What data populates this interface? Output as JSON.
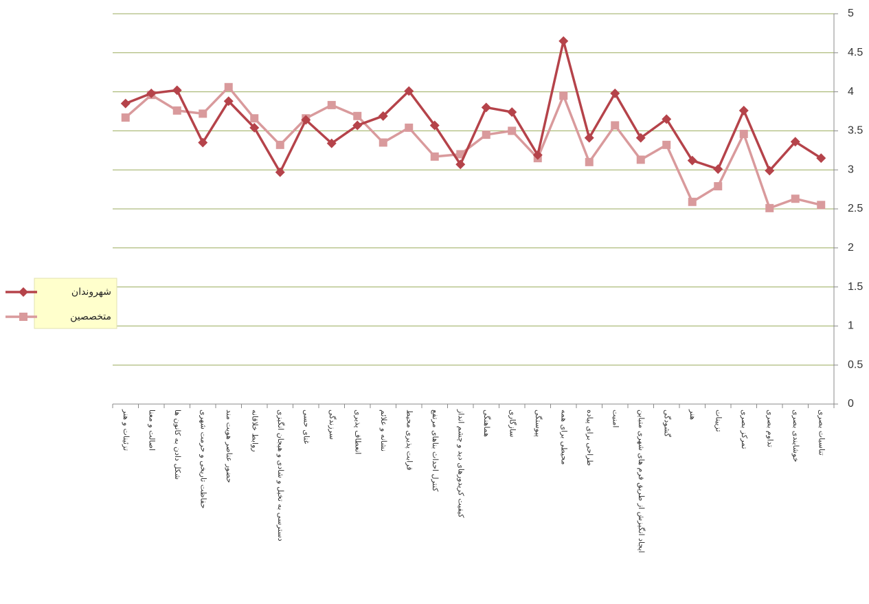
{
  "chart_data": {
    "type": "line",
    "categories": [
      "تزئینات و هنر",
      "اصالت و معنا",
      "شکل دادن به کانون ها",
      "حفاظت تاریخی و حرمت شهری",
      "حضور عناصر هویت مند",
      "روابط خلاقانه",
      "دسترسی به تخیل و شادی و هیجان انگیزی",
      "غنای حسی",
      "سرزندگی",
      "انعطاف پذیری",
      "نشانه و علائم",
      "قرابت پذیری محیط",
      "کنترل احداث بناهای مرتفع",
      "کیفیت کریدورهای دید و چشم انداز",
      "هماهنگی",
      "سازگاری",
      "پیوستگی",
      "محیطی برای همه",
      "طراحی برای پیاده",
      "امنیت",
      "ایجاد انگیزش از طریق فرم های شهری متباین",
      "گشودگی",
      "هنر",
      "تزیینات",
      "تمرکز بصری",
      "تداوم بصری",
      "خوشایندی بصری",
      "تناسبات بصری"
    ],
    "series": [
      {
        "name": "شهروندان",
        "color": "#b5434a",
        "marker": "diamond",
        "values": [
          3.85,
          3.98,
          4.02,
          3.35,
          3.88,
          3.54,
          2.97,
          3.64,
          3.34,
          3.57,
          3.69,
          4.01,
          3.57,
          3.07,
          3.8,
          3.74,
          3.19,
          4.65,
          3.41,
          3.98,
          3.41,
          3.65,
          3.12,
          3.01,
          3.76,
          2.99,
          3.36,
          3.15
        ]
      },
      {
        "name": "متخصصین",
        "color": "#d99a9c",
        "marker": "square",
        "values": [
          3.67,
          3.96,
          3.76,
          3.72,
          4.06,
          3.66,
          3.32,
          3.66,
          3.83,
          3.69,
          3.35,
          3.54,
          3.17,
          3.2,
          3.45,
          3.5,
          3.15,
          3.95,
          3.1,
          3.57,
          3.13,
          3.32,
          2.59,
          2.79,
          3.46,
          2.51,
          2.63,
          2.55
        ]
      }
    ],
    "ylim": [
      0,
      5
    ],
    "yticks": [
      0,
      0.5,
      1,
      1.5,
      2,
      2.5,
      3,
      3.5,
      4,
      4.5,
      5
    ],
    "grid": true,
    "grid_color": "#9aab5c",
    "y_axis_side": "right",
    "legend": "left"
  }
}
